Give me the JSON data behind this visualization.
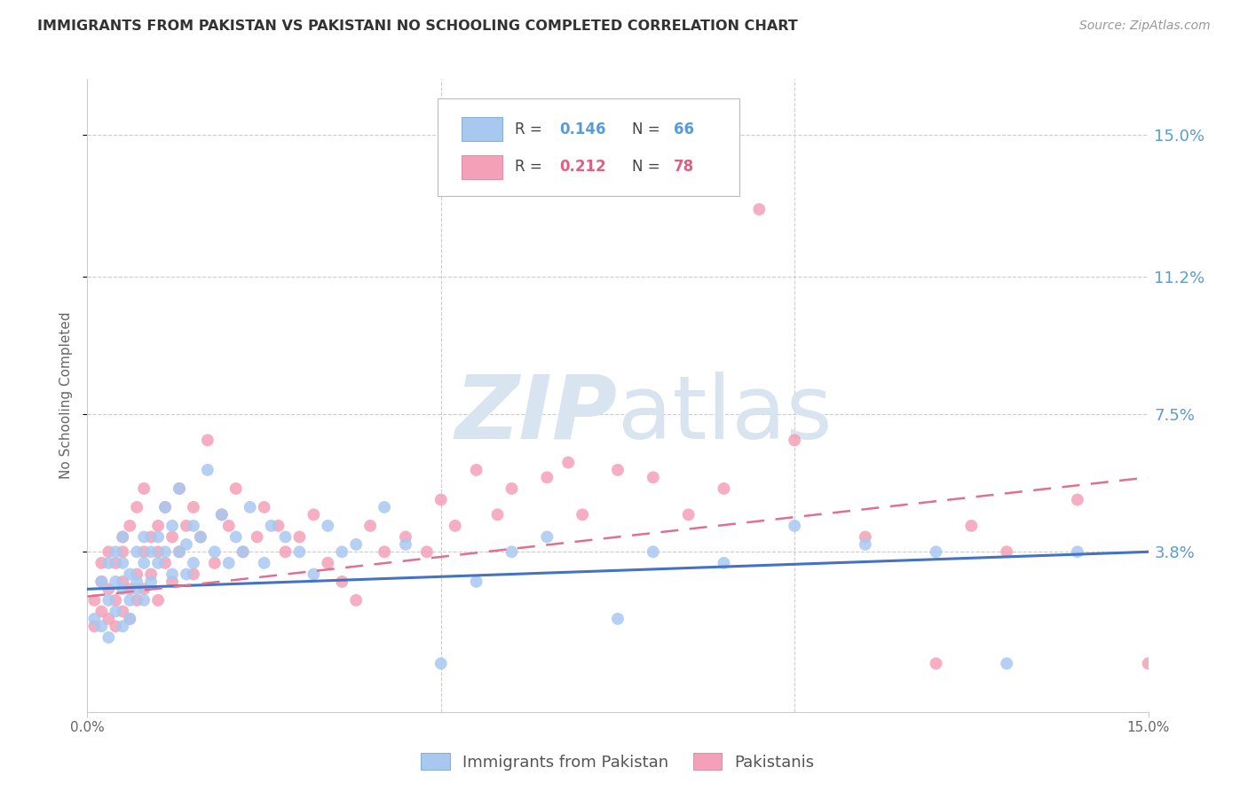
{
  "title": "IMMIGRANTS FROM PAKISTAN VS PAKISTANI NO SCHOOLING COMPLETED CORRELATION CHART",
  "source": "Source: ZipAtlas.com",
  "ylabel": "No Schooling Completed",
  "ytick_values": [
    0.038,
    0.075,
    0.112,
    0.15
  ],
  "ytick_labels": [
    "3.8%",
    "7.5%",
    "11.2%",
    "15.0%"
  ],
  "xlim": [
    0.0,
    0.15
  ],
  "ylim": [
    -0.005,
    0.165
  ],
  "legend_blue_r": "0.146",
  "legend_blue_n": "66",
  "legend_pink_r": "0.212",
  "legend_pink_n": "78",
  "legend_label_blue": "Immigrants from Pakistan",
  "legend_label_pink": "Pakistanis",
  "color_blue": "#a8c8f0",
  "color_pink": "#f4a0b8",
  "line_color_blue": "#4472c4",
  "line_color_pink": "#e07090",
  "watermark_color": "#d8e4f0",
  "blue_scatter_x": [
    0.001,
    0.002,
    0.002,
    0.003,
    0.003,
    0.003,
    0.004,
    0.004,
    0.004,
    0.005,
    0.005,
    0.005,
    0.005,
    0.006,
    0.006,
    0.006,
    0.007,
    0.007,
    0.007,
    0.008,
    0.008,
    0.008,
    0.009,
    0.009,
    0.01,
    0.01,
    0.011,
    0.011,
    0.012,
    0.012,
    0.013,
    0.013,
    0.014,
    0.014,
    0.015,
    0.015,
    0.016,
    0.017,
    0.018,
    0.019,
    0.02,
    0.021,
    0.022,
    0.023,
    0.025,
    0.026,
    0.028,
    0.03,
    0.032,
    0.034,
    0.036,
    0.038,
    0.042,
    0.045,
    0.05,
    0.055,
    0.06,
    0.065,
    0.075,
    0.08,
    0.09,
    0.1,
    0.11,
    0.12,
    0.13,
    0.14
  ],
  "blue_scatter_y": [
    0.02,
    0.018,
    0.03,
    0.025,
    0.015,
    0.035,
    0.022,
    0.03,
    0.038,
    0.018,
    0.028,
    0.035,
    0.042,
    0.025,
    0.032,
    0.02,
    0.03,
    0.038,
    0.028,
    0.035,
    0.042,
    0.025,
    0.038,
    0.03,
    0.035,
    0.042,
    0.038,
    0.05,
    0.032,
    0.045,
    0.038,
    0.055,
    0.04,
    0.032,
    0.045,
    0.035,
    0.042,
    0.06,
    0.038,
    0.048,
    0.035,
    0.042,
    0.038,
    0.05,
    0.035,
    0.045,
    0.042,
    0.038,
    0.032,
    0.045,
    0.038,
    0.04,
    0.05,
    0.04,
    0.008,
    0.03,
    0.038,
    0.042,
    0.02,
    0.038,
    0.035,
    0.045,
    0.04,
    0.038,
    0.008,
    0.038
  ],
  "pink_scatter_x": [
    0.001,
    0.001,
    0.002,
    0.002,
    0.002,
    0.003,
    0.003,
    0.003,
    0.004,
    0.004,
    0.004,
    0.005,
    0.005,
    0.005,
    0.005,
    0.006,
    0.006,
    0.006,
    0.007,
    0.007,
    0.007,
    0.008,
    0.008,
    0.008,
    0.009,
    0.009,
    0.01,
    0.01,
    0.01,
    0.011,
    0.011,
    0.012,
    0.012,
    0.013,
    0.013,
    0.014,
    0.015,
    0.015,
    0.016,
    0.017,
    0.018,
    0.019,
    0.02,
    0.021,
    0.022,
    0.024,
    0.025,
    0.027,
    0.028,
    0.03,
    0.032,
    0.034,
    0.036,
    0.038,
    0.04,
    0.042,
    0.045,
    0.048,
    0.05,
    0.052,
    0.055,
    0.058,
    0.06,
    0.065,
    0.068,
    0.07,
    0.075,
    0.08,
    0.085,
    0.09,
    0.095,
    0.1,
    0.11,
    0.12,
    0.125,
    0.13,
    0.14,
    0.15
  ],
  "pink_scatter_y": [
    0.025,
    0.018,
    0.03,
    0.022,
    0.035,
    0.02,
    0.028,
    0.038,
    0.025,
    0.035,
    0.018,
    0.03,
    0.042,
    0.022,
    0.038,
    0.028,
    0.045,
    0.02,
    0.032,
    0.05,
    0.025,
    0.038,
    0.028,
    0.055,
    0.032,
    0.042,
    0.038,
    0.045,
    0.025,
    0.05,
    0.035,
    0.042,
    0.03,
    0.055,
    0.038,
    0.045,
    0.05,
    0.032,
    0.042,
    0.068,
    0.035,
    0.048,
    0.045,
    0.055,
    0.038,
    0.042,
    0.05,
    0.045,
    0.038,
    0.042,
    0.048,
    0.035,
    0.03,
    0.025,
    0.045,
    0.038,
    0.042,
    0.038,
    0.052,
    0.045,
    0.06,
    0.048,
    0.055,
    0.058,
    0.062,
    0.048,
    0.06,
    0.058,
    0.048,
    0.055,
    0.13,
    0.068,
    0.042,
    0.008,
    0.045,
    0.038,
    0.052,
    0.008
  ]
}
